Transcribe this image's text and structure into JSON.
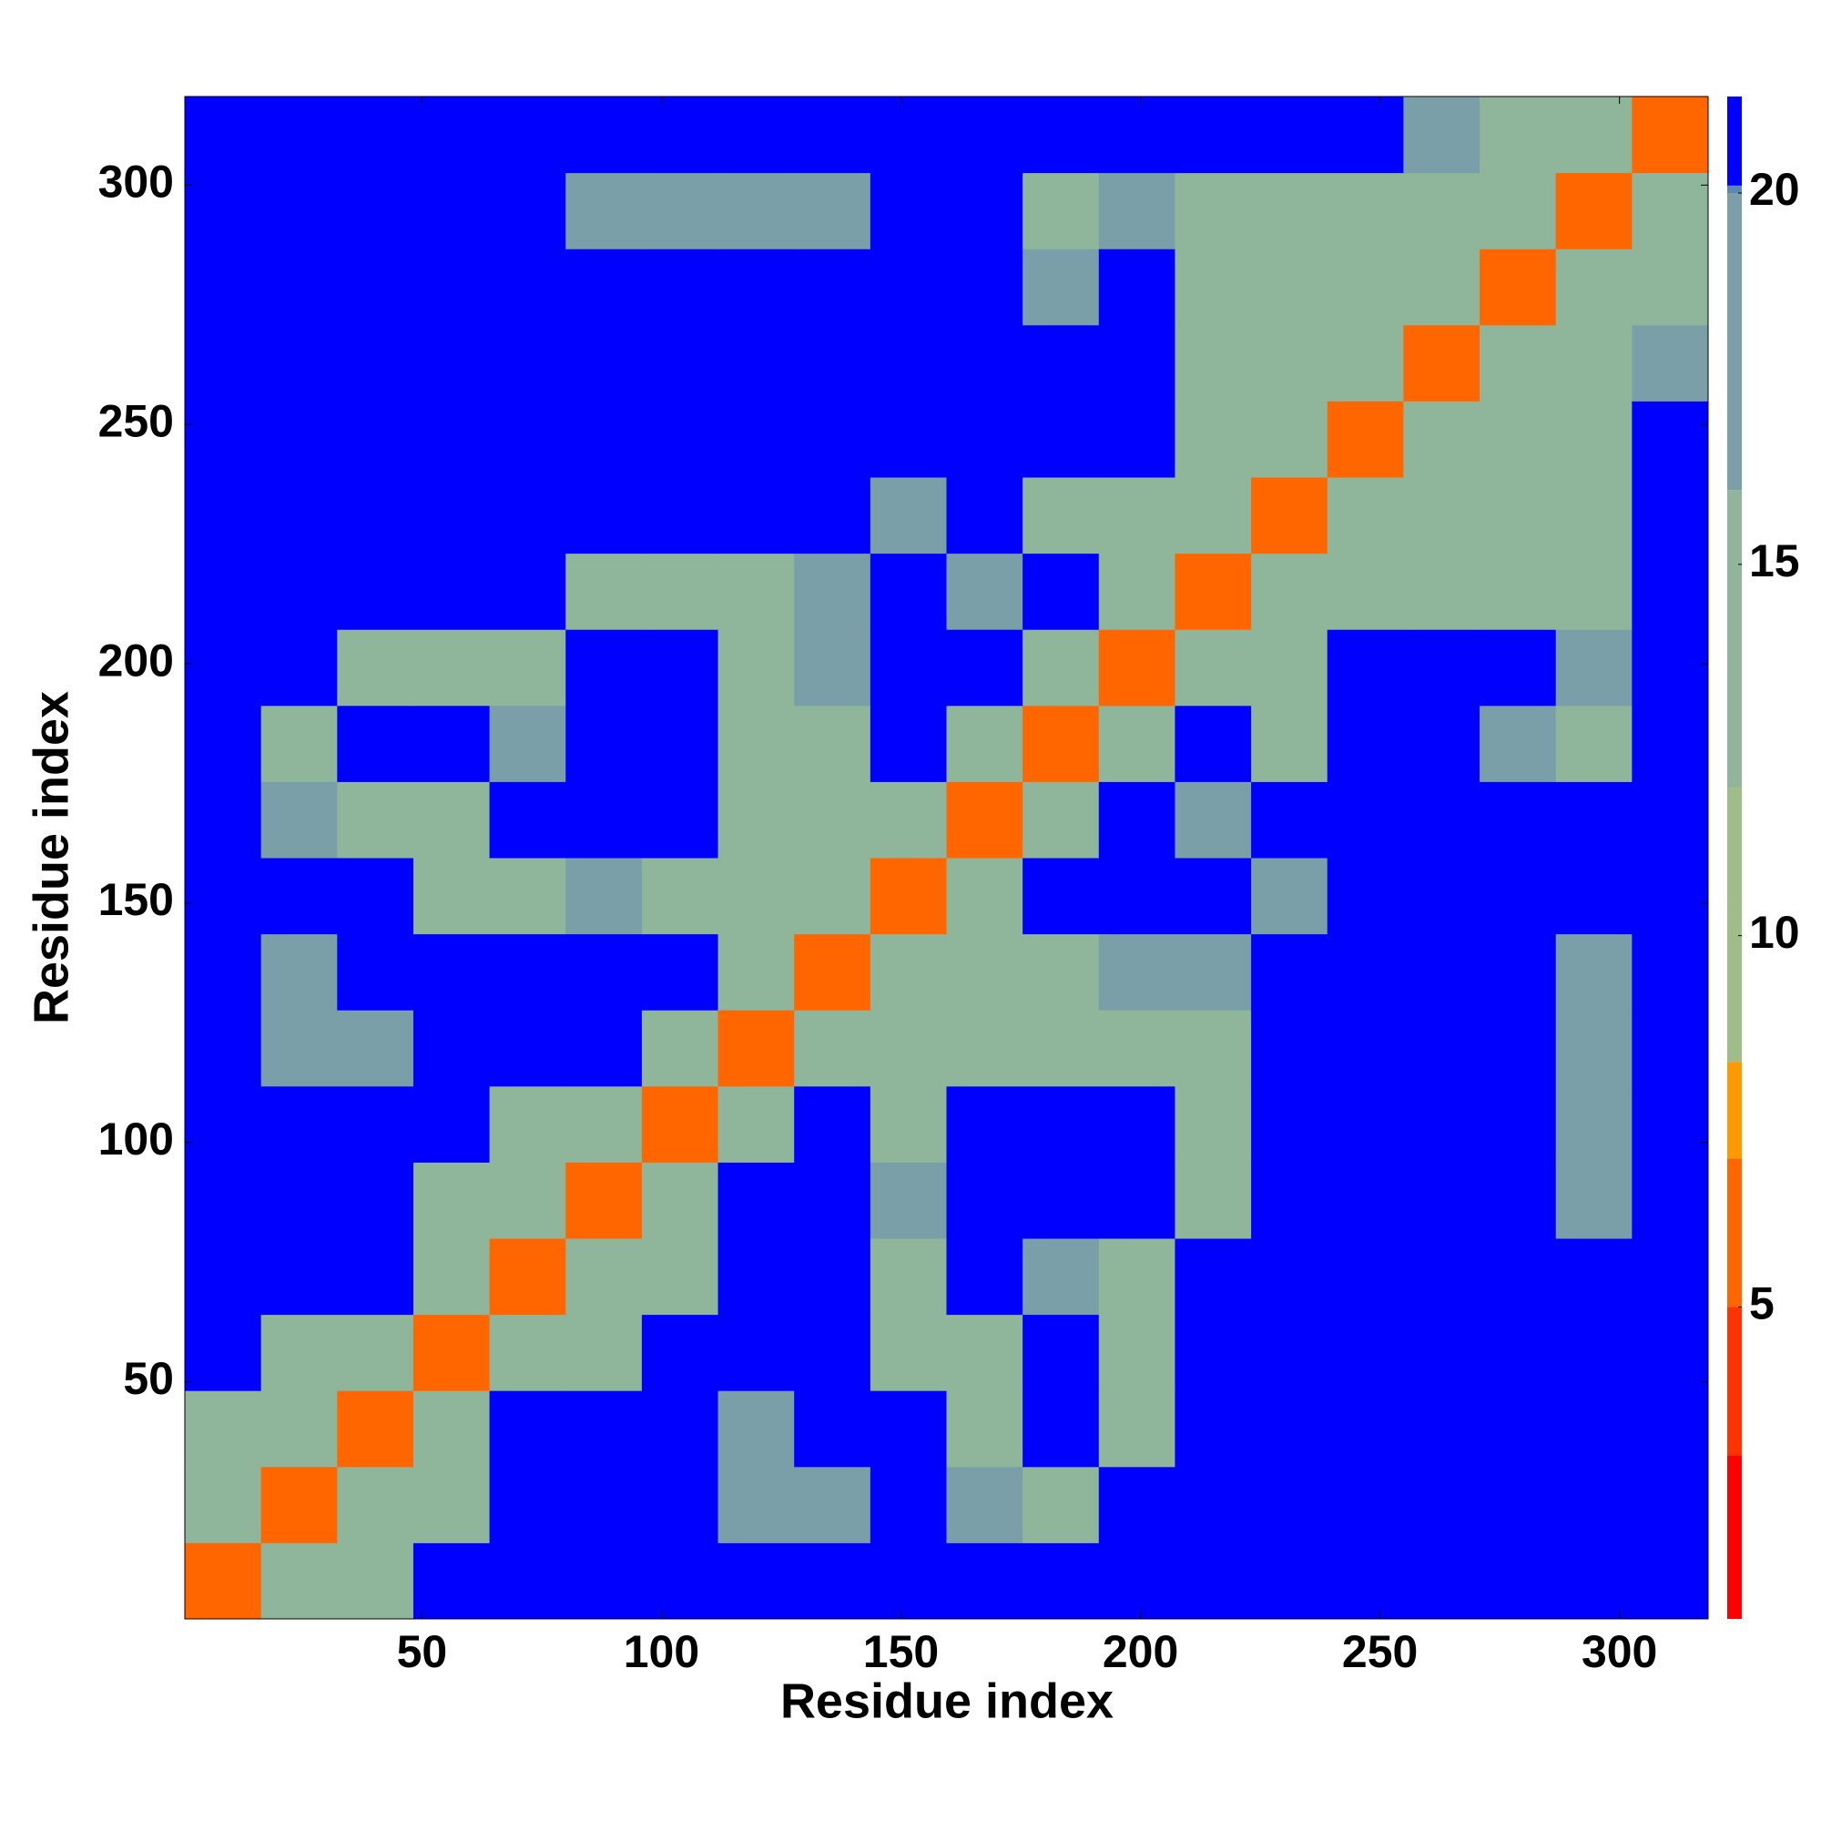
{
  "chart_data": {
    "type": "heatmap",
    "xlabel": "Residue index",
    "ylabel": "Residue index",
    "bins": [
      0.5,
      16.4,
      32.3,
      48.2,
      64.1,
      80,
      95.9,
      111.8,
      127.7,
      143.6,
      159.5,
      175.4,
      191.3,
      207.2,
      223.1,
      239,
      254.9,
      270.8,
      286.7,
      302.6,
      318.5
    ],
    "xlim": [
      0.5,
      318.5
    ],
    "ylim": [
      0.5,
      318.5
    ],
    "xticks": [
      50,
      100,
      150,
      200,
      250,
      300
    ],
    "yticks": [
      50,
      100,
      150,
      200,
      250,
      300
    ],
    "zlim": [
      0.8,
      21.3
    ],
    "zticks": [
      5,
      10,
      15,
      20
    ],
    "colorscale": [
      [
        0.8,
        "#ff0000"
      ],
      [
        3,
        "#ff3300"
      ],
      [
        5,
        "#ff6600"
      ],
      [
        7,
        "#ff9900"
      ],
      [
        8.3,
        "#9fbd88"
      ],
      [
        12,
        "#8fb59a"
      ],
      [
        16,
        "#7a9fa8"
      ],
      [
        20,
        "#5b86b6"
      ],
      [
        20.1,
        "#0000ff"
      ]
    ],
    "z": [
      [
        5,
        12,
        15,
        21,
        21,
        21,
        21,
        21,
        21,
        21,
        21,
        21,
        21,
        21,
        21,
        21,
        21,
        21,
        21,
        21
      ],
      [
        12,
        5,
        12,
        13,
        21,
        21,
        21,
        17,
        18,
        21,
        16,
        14,
        21,
        21,
        21,
        21,
        21,
        21,
        21,
        21
      ],
      [
        15,
        12,
        5,
        12,
        21,
        21,
        21,
        17,
        21,
        21,
        14,
        21,
        13,
        21,
        21,
        21,
        21,
        21,
        21,
        21
      ],
      [
        21,
        13,
        12,
        5,
        12,
        14,
        21,
        21,
        21,
        13,
        14,
        21,
        14,
        21,
        21,
        21,
        21,
        21,
        21,
        21
      ],
      [
        21,
        21,
        21,
        12,
        5,
        12,
        13,
        21,
        21,
        14,
        21,
        16,
        14,
        21,
        21,
        21,
        21,
        21,
        21,
        21
      ],
      [
        21,
        21,
        21,
        14,
        12,
        5,
        12,
        21,
        21,
        16,
        21,
        21,
        21,
        15,
        21,
        21,
        21,
        21,
        18,
        21
      ],
      [
        21,
        21,
        21,
        21,
        13,
        12,
        5,
        12,
        21,
        15,
        21,
        21,
        21,
        14,
        21,
        21,
        21,
        21,
        18,
        21
      ],
      [
        21,
        17,
        17,
        21,
        21,
        21,
        12,
        5,
        12,
        13,
        15,
        14,
        15,
        13,
        21,
        21,
        21,
        21,
        17,
        21
      ],
      [
        21,
        18,
        21,
        21,
        21,
        21,
        21,
        12,
        5,
        12,
        13,
        15,
        16,
        16,
        21,
        21,
        21,
        21,
        17,
        21
      ],
      [
        21,
        21,
        21,
        13,
        14,
        16,
        15,
        13,
        12,
        5,
        12,
        21,
        21,
        21,
        17,
        21,
        21,
        21,
        21,
        21
      ],
      [
        21,
        16,
        14,
        14,
        21,
        21,
        21,
        15,
        13,
        12,
        5,
        12,
        21,
        16,
        21,
        21,
        21,
        21,
        21,
        21
      ],
      [
        21,
        14,
        21,
        21,
        16,
        21,
        21,
        14,
        15,
        21,
        12,
        5,
        12,
        21,
        15,
        21,
        21,
        16,
        15,
        21
      ],
      [
        21,
        21,
        13,
        14,
        14,
        21,
        21,
        15,
        16,
        21,
        21,
        12,
        5,
        12,
        14,
        21,
        21,
        21,
        16,
        21
      ],
      [
        21,
        21,
        21,
        21,
        21,
        15,
        14,
        13,
        16,
        21,
        16,
        21,
        12,
        5,
        12,
        13,
        15,
        15,
        15,
        21
      ],
      [
        21,
        21,
        21,
        21,
        21,
        21,
        21,
        21,
        21,
        17,
        21,
        15,
        14,
        12,
        5,
        12,
        13,
        15,
        14,
        21
      ],
      [
        21,
        21,
        21,
        21,
        21,
        21,
        21,
        21,
        21,
        21,
        21,
        21,
        21,
        13,
        12,
        5,
        12,
        13,
        14,
        21
      ],
      [
        21,
        21,
        21,
        21,
        21,
        21,
        21,
        21,
        21,
        21,
        21,
        21,
        21,
        15,
        13,
        12,
        5,
        12,
        13,
        16
      ],
      [
        21,
        21,
        21,
        21,
        21,
        21,
        21,
        21,
        21,
        21,
        21,
        16,
        21,
        15,
        15,
        13,
        12,
        5,
        12,
        12
      ],
      [
        21,
        21,
        21,
        21,
        21,
        18,
        18,
        17,
        17,
        21,
        21,
        15,
        16,
        15,
        14,
        14,
        13,
        12,
        5,
        12
      ],
      [
        21,
        21,
        21,
        21,
        21,
        21,
        21,
        21,
        21,
        21,
        21,
        21,
        21,
        21,
        21,
        21,
        16,
        12,
        12,
        5
      ]
    ]
  }
}
